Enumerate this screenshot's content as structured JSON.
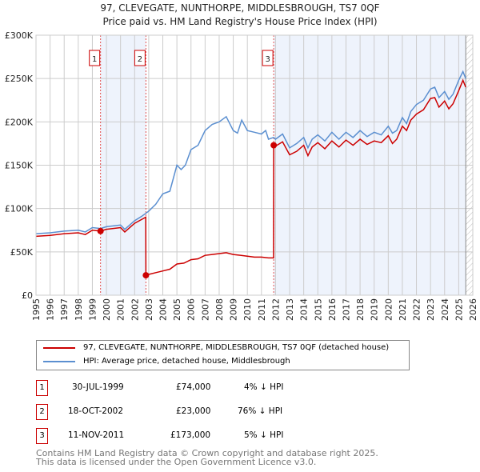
{
  "chart_data": {
    "type": "line",
    "title": "97, CLEVEGATE, NUNTHORPE, MIDDLESBROUGH, TS7 0QF",
    "subtitle": "Price paid vs. HM Land Registry's House Price Index (HPI)",
    "xlim": [
      1995,
      2026
    ],
    "ylim": [
      0,
      300000
    ],
    "yticks": [
      {
        "v": 0,
        "label": "£0"
      },
      {
        "v": 50000,
        "label": "£50K"
      },
      {
        "v": 100000,
        "label": "£100K"
      },
      {
        "v": 150000,
        "label": "£150K"
      },
      {
        "v": 200000,
        "label": "£200K"
      },
      {
        "v": 250000,
        "label": "£250K"
      },
      {
        "v": 300000,
        "label": "£300K"
      }
    ],
    "xticks": [
      "1995",
      "1996",
      "1997",
      "1998",
      "1999",
      "2000",
      "2001",
      "2002",
      "2003",
      "2004",
      "2005",
      "2006",
      "2007",
      "2008",
      "2009",
      "2010",
      "2011",
      "2012",
      "2013",
      "2014",
      "2015",
      "2016",
      "2017",
      "2018",
      "2019",
      "2020",
      "2021",
      "2022",
      "2023",
      "2024",
      "2025",
      "2026"
    ],
    "series": [
      {
        "name": "97, CLEVEGATE, NUNTHORPE, MIDDLESBROUGH, TS7 0QF (detached house)",
        "color": "#cc0000",
        "x": [
          1995,
          1996,
          1997,
          1998,
          1998.5,
          1999,
          1999.58,
          2000,
          2001,
          2001.3,
          2002,
          2002.79,
          2002.8,
          2003,
          2003.5,
          2004,
          2004.5,
          2005,
          2005.5,
          2006,
          2006.5,
          2007,
          2007.5,
          2008,
          2008.5,
          2009,
          2009.5,
          2010,
          2010.5,
          2011,
          2011.5,
          2011.86,
          2011.87,
          2012,
          2012.5,
          2013,
          2013.5,
          2014,
          2014.3,
          2014.6,
          2015,
          2015.5,
          2016,
          2016.5,
          2017,
          2017.5,
          2018,
          2018.5,
          2019,
          2019.5,
          2020,
          2020.3,
          2020.6,
          2021,
          2021.3,
          2021.6,
          2022,
          2022.5,
          2023,
          2023.3,
          2023.6,
          2024,
          2024.3,
          2024.6,
          2025,
          2025.3,
          2025.5
        ],
        "y": [
          68000,
          69000,
          71000,
          72000,
          70000,
          75000,
          74000,
          76000,
          78000,
          73000,
          83000,
          90000,
          23000,
          24000,
          26000,
          28000,
          30000,
          36000,
          37000,
          41000,
          42000,
          46000,
          47000,
          48000,
          49000,
          47000,
          46000,
          45000,
          44000,
          44000,
          43000,
          43000,
          173000,
          172000,
          177000,
          162000,
          166000,
          173000,
          161000,
          171000,
          176000,
          169000,
          178000,
          171000,
          179000,
          173000,
          180000,
          174000,
          178000,
          176000,
          184000,
          175000,
          180000,
          195000,
          190000,
          202000,
          209000,
          214000,
          227000,
          228000,
          217000,
          224000,
          215000,
          221000,
          236000,
          248000,
          240000
        ]
      },
      {
        "name": "HPI: Average price, detached house, Middlesbrough",
        "color": "#5b8fd0",
        "x": [
          1995,
          1996,
          1997,
          1998,
          1998.5,
          1999,
          1999.58,
          2000,
          2001,
          2001.3,
          2002,
          2002.5,
          2003,
          2003.5,
          2004,
          2004.5,
          2005,
          2005.3,
          2005.6,
          2006,
          2006.5,
          2007,
          2007.5,
          2008,
          2008.5,
          2009,
          2009.3,
          2009.6,
          2010,
          2010.5,
          2011,
          2011.3,
          2011.5,
          2011.86,
          2012,
          2012.5,
          2013,
          2013.5,
          2014,
          2014.3,
          2014.6,
          2015,
          2015.5,
          2016,
          2016.5,
          2017,
          2017.5,
          2018,
          2018.5,
          2019,
          2019.5,
          2020,
          2020.3,
          2020.6,
          2021,
          2021.3,
          2021.6,
          2022,
          2022.5,
          2023,
          2023.3,
          2023.6,
          2024,
          2024.3,
          2024.6,
          2025,
          2025.3,
          2025.5
        ],
        "y": [
          71000,
          72000,
          74000,
          75000,
          73000,
          78000,
          77000,
          79000,
          81000,
          76000,
          86000,
          91000,
          97000,
          105000,
          117000,
          120000,
          150000,
          145000,
          150000,
          168000,
          173000,
          190000,
          197000,
          200000,
          206000,
          190000,
          187000,
          202000,
          190000,
          188000,
          186000,
          190000,
          180000,
          182000,
          180000,
          186000,
          170000,
          175000,
          182000,
          170000,
          180000,
          185000,
          178000,
          188000,
          180000,
          188000,
          182000,
          190000,
          183000,
          188000,
          185000,
          195000,
          187000,
          190000,
          205000,
          198000,
          212000,
          220000,
          225000,
          238000,
          240000,
          228000,
          235000,
          226000,
          232000,
          248000,
          258000,
          250000
        ]
      }
    ],
    "sales": [
      {
        "n": "1",
        "x": 1999.58,
        "y": 74000
      },
      {
        "n": "2",
        "x": 2002.8,
        "y": 23000
      },
      {
        "n": "3",
        "x": 2011.87,
        "y": 173000
      }
    ],
    "shaded": [
      [
        1999.58,
        2002.8
      ],
      [
        2011.87,
        2025.5
      ]
    ],
    "forecast_from": 2025.5
  },
  "legend": {
    "property": "97, CLEVEGATE, NUNTHORPE, MIDDLESBROUGH, TS7 0QF (detached house)",
    "hpi": "HPI: Average price, detached house, Middlesbrough"
  },
  "transactions": [
    {
      "n": "1",
      "date": "30-JUL-1999",
      "price": "£74,000",
      "delta": "4% ↓ HPI"
    },
    {
      "n": "2",
      "date": "18-OCT-2002",
      "price": "£23,000",
      "delta": "76% ↓ HPI"
    },
    {
      "n": "3",
      "date": "11-NOV-2011",
      "price": "£173,000",
      "delta": "5% ↓ HPI"
    }
  ],
  "footer": {
    "line1": "Contains HM Land Registry data © Crown copyright and database right 2025.",
    "line2": "This data is licensed under the Open Government Licence v3.0."
  }
}
